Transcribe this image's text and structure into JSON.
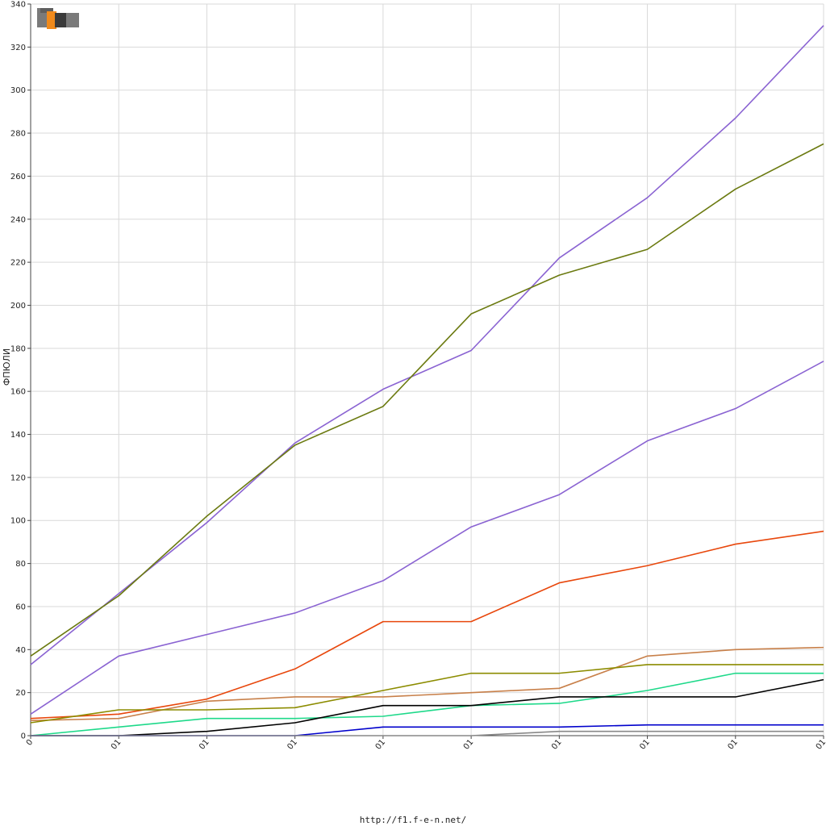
{
  "footer": {
    "url": "http://f1.f-e-n.net/"
  },
  "logo": {
    "text": "F1EN",
    "colors": {
      "grey": "#7a7a7a",
      "orange": "#f08a1c",
      "dark": "#3a3a3a"
    }
  },
  "chart_data": {
    "type": "line",
    "title": "",
    "xlabel": "",
    "ylabel": "ФПЮЛИ",
    "ylim": [
      0,
      340
    ],
    "yticks": [
      0,
      20,
      40,
      60,
      80,
      100,
      120,
      140,
      160,
      180,
      200,
      220,
      240,
      260,
      280,
      300,
      320,
      340
    ],
    "categories": [
      "0",
      "01",
      "01",
      "01",
      "01",
      "01",
      "01",
      "01",
      "01",
      "01"
    ],
    "grid": true,
    "series": [
      {
        "color": "#8a63d2",
        "values": [
          33,
          66,
          99,
          136,
          161,
          179,
          222,
          250,
          287,
          330
        ]
      },
      {
        "color": "#6b7a10",
        "values": [
          37,
          65,
          102,
          135,
          153,
          196,
          214,
          226,
          254,
          275
        ]
      },
      {
        "color": "#8a63d2",
        "values": [
          10,
          37,
          47,
          57,
          72,
          97,
          112,
          137,
          152,
          174
        ]
      },
      {
        "color": "#e8470c",
        "values": [
          8,
          10,
          17,
          31,
          53,
          53,
          71,
          79,
          89,
          95
        ]
      },
      {
        "color": "#c8804a",
        "values": [
          7,
          8,
          16,
          18,
          18,
          20,
          22,
          37,
          40,
          41
        ]
      },
      {
        "color": "#8c8c00",
        "values": [
          6,
          12,
          12,
          13,
          21,
          29,
          29,
          33,
          33,
          33
        ]
      },
      {
        "color": "#1ed98a",
        "values": [
          0,
          4,
          8,
          8,
          9,
          14,
          15,
          21,
          29,
          29
        ]
      },
      {
        "color": "#000000",
        "values": [
          0,
          0,
          2,
          6,
          14,
          14,
          18,
          18,
          18,
          26
        ]
      },
      {
        "color": "#0000cc",
        "values": [
          0,
          0,
          0,
          0,
          4,
          4,
          4,
          5,
          5,
          5
        ]
      },
      {
        "color": "#888888",
        "values": [
          0,
          0,
          0,
          0,
          0,
          0,
          2,
          2,
          2,
          2
        ]
      }
    ]
  }
}
